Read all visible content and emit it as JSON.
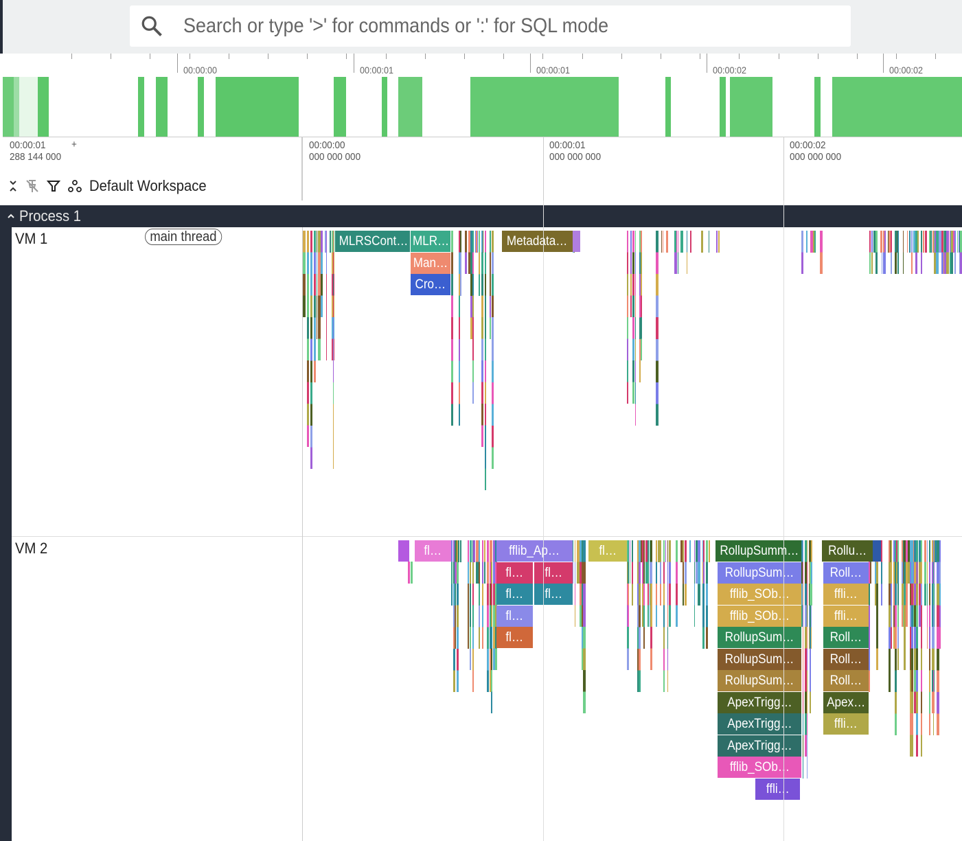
{
  "search": {
    "placeholder": "Search or type '>' for commands or ':' for SQL mode",
    "icon": "search-icon"
  },
  "overview": {
    "tick_labels": [
      "00:00:00",
      "00:00:01",
      "00:00:01",
      "00:00:02",
      "00:00:02"
    ],
    "bar_color": "#5cc76a"
  },
  "time_axis": {
    "offset_label": "00:00:01\n288 144 000",
    "offset_plus": "+",
    "labels": [
      "00:00:00\n000 000 000",
      "00:00:01\n000 000 000",
      "00:00:02\n000 000 000"
    ]
  },
  "workspace": {
    "name": "Default Workspace"
  },
  "process": {
    "title": "Process 1"
  },
  "tracks": [
    {
      "name": "VM 1",
      "chip": "main thread"
    },
    {
      "name": "VM 2"
    }
  ],
  "slices": {
    "vm1": [
      {
        "label": "MLRSCont…",
        "color": "#2e8b7a"
      },
      {
        "label": "MLR…",
        "color": "#3aaa8a"
      },
      {
        "label": "Man…",
        "color": "#ef8a6f"
      },
      {
        "label": "Cro…",
        "color": "#3b5fd0"
      },
      {
        "label": "Metadata…",
        "color": "#7a6a2a"
      }
    ],
    "vm2": [
      {
        "label": "fl…",
        "color": "#e87bd6"
      },
      {
        "label": "fflib_Ap…",
        "color": "#8f7ee6"
      },
      {
        "label": "fl…",
        "color": "#d43a6b"
      },
      {
        "label": "fl…",
        "color": "#d43a6b"
      },
      {
        "label": "fl…",
        "color": "#2d8aa0"
      },
      {
        "label": "fl…",
        "color": "#2d8aa0"
      },
      {
        "label": "fl…",
        "color": "#8a8ae8"
      },
      {
        "label": "fl…",
        "color": "#d0683a"
      },
      {
        "label": "fl…",
        "color": "#c8c050"
      },
      {
        "label": "RollupSumm…",
        "color": "#2e6e32"
      },
      {
        "label": "RollupSum…",
        "color": "#7a7ee8"
      },
      {
        "label": "fflib_SOb…",
        "color": "#d4ac4c"
      },
      {
        "label": "fflib_SOb…",
        "color": "#d4ac4c"
      },
      {
        "label": "RollupSum…",
        "color": "#2e8a56"
      },
      {
        "label": "RollupSum…",
        "color": "#845a2c"
      },
      {
        "label": "RollupSum…",
        "color": "#a8843c"
      },
      {
        "label": "ApexTrigg…",
        "color": "#4d6024"
      },
      {
        "label": "ApexTrigg…",
        "color": "#2e6e68"
      },
      {
        "label": "ApexTrigg…",
        "color": "#2e6e68"
      },
      {
        "label": "fflib_SOb…",
        "color": "#e858b8"
      },
      {
        "label": "ffli…",
        "color": "#7a52d8"
      },
      {
        "label": "Rollu…",
        "color": "#4d6024"
      },
      {
        "label": "Roll…",
        "color": "#7a7ee8"
      },
      {
        "label": "ffli…",
        "color": "#d4ac4c"
      },
      {
        "label": "ffli…",
        "color": "#d4ac4c"
      },
      {
        "label": "Roll…",
        "color": "#2e8a56"
      },
      {
        "label": "Roll…",
        "color": "#845a2c"
      },
      {
        "label": "Roll…",
        "color": "#a8843c"
      },
      {
        "label": "Apex…",
        "color": "#4d6024"
      },
      {
        "label": "ffli…",
        "color": "#b0a848"
      }
    ]
  }
}
